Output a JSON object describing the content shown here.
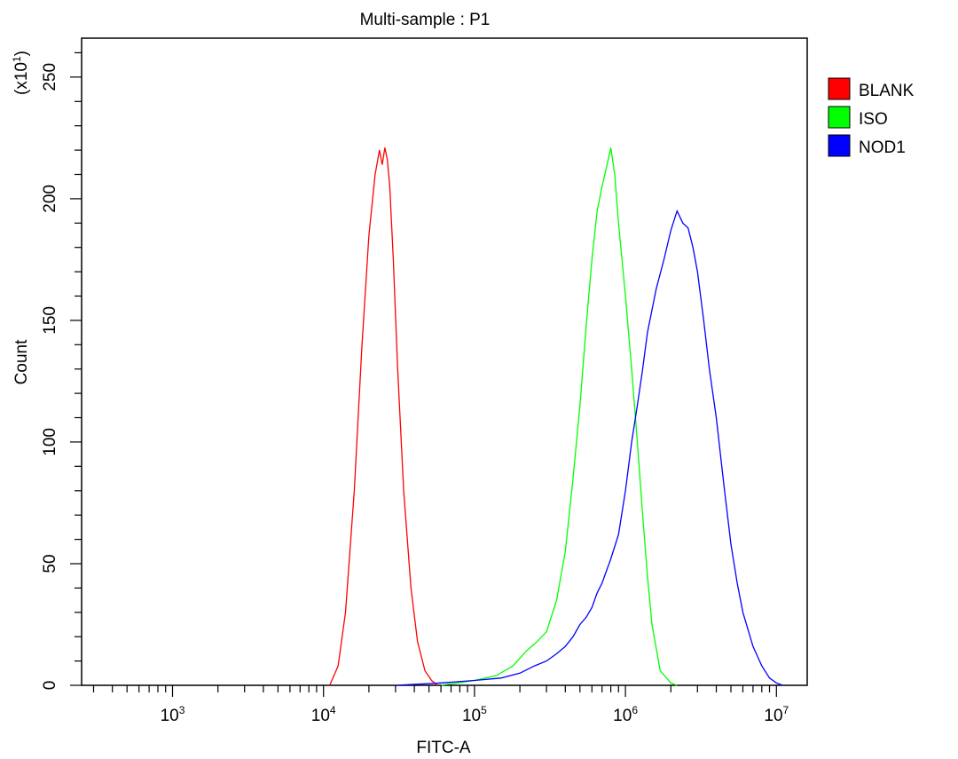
{
  "chart_data": {
    "type": "line",
    "title": "Multi-sample : P1",
    "xlabel": "FITC-A",
    "ylabel": "Count",
    "y_multiplier_label": "(x10",
    "y_multiplier_exponent": "1",
    "x_scale": "log",
    "xlim": [
      250,
      16000000
    ],
    "ylim": [
      0,
      266
    ],
    "x_ticks": [
      {
        "value": 1000,
        "base": "10",
        "exp": "3"
      },
      {
        "value": 10000,
        "base": "10",
        "exp": "4"
      },
      {
        "value": 100000,
        "base": "10",
        "exp": "5"
      },
      {
        "value": 1000000,
        "base": "10",
        "exp": "6"
      },
      {
        "value": 10000000,
        "base": "10",
        "exp": "7"
      }
    ],
    "y_ticks": [
      0,
      50,
      100,
      150,
      200,
      250
    ],
    "grid": false,
    "legend_position": "right-top",
    "series": [
      {
        "name": "BLANK",
        "color": "#ff0000",
        "x": [
          11000,
          12500,
          14000,
          16000,
          18000,
          20000,
          22000,
          23500,
          24500,
          25500,
          26500,
          27500,
          29000,
          31000,
          34000,
          38000,
          42000,
          47000,
          52000,
          57000
        ],
        "y": [
          0,
          8,
          30,
          80,
          140,
          185,
          210,
          220,
          214,
          221,
          216,
          205,
          175,
          130,
          80,
          40,
          18,
          6,
          2,
          0
        ]
      },
      {
        "name": "ISO",
        "color": "#00ff00",
        "x": [
          60000,
          100000,
          140000,
          180000,
          220000,
          260000,
          300000,
          350000,
          400000,
          450000,
          500000,
          550000,
          600000,
          650000,
          700000,
          750000,
          800000,
          850000,
          900000,
          1000000,
          1100000,
          1200000,
          1300000,
          1400000,
          1500000,
          1700000,
          2000000,
          2200000
        ],
        "y": [
          0,
          2,
          4,
          8,
          14,
          18,
          22,
          35,
          55,
          85,
          115,
          148,
          175,
          195,
          205,
          213,
          221,
          210,
          190,
          160,
          130,
          100,
          70,
          45,
          25,
          6,
          1,
          0
        ]
      },
      {
        "name": "NOD1",
        "color": "#0000ff",
        "x": [
          30000,
          60000,
          100000,
          150000,
          200000,
          250000,
          300000,
          350000,
          400000,
          450000,
          500000,
          550000,
          600000,
          650000,
          700000,
          800000,
          900000,
          1000000,
          1100000,
          1200000,
          1300000,
          1400000,
          1600000,
          1800000,
          2000000,
          2200000,
          2400000,
          2600000,
          2800000,
          3000000,
          3300000,
          3600000,
          4000000,
          4500000,
          5000000,
          5500000,
          6000000,
          7000000,
          8000000,
          9000000,
          10000000,
          11000000
        ],
        "y": [
          0,
          1,
          2,
          3,
          5,
          8,
          10,
          13,
          16,
          20,
          25,
          28,
          32,
          38,
          42,
          52,
          62,
          80,
          100,
          115,
          130,
          145,
          163,
          175,
          187,
          195,
          190,
          188,
          180,
          170,
          150,
          130,
          110,
          82,
          58,
          42,
          30,
          16,
          8,
          3,
          1,
          0
        ]
      }
    ]
  }
}
